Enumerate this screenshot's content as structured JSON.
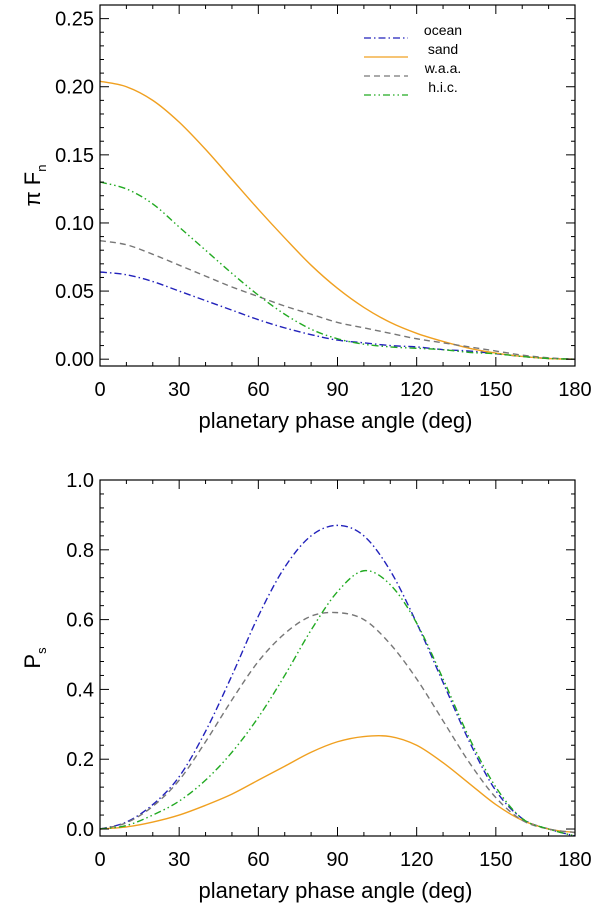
{
  "chart_data": [
    {
      "type": "line",
      "id": "top",
      "xlabel": "planetary phase angle (deg)",
      "ylabel_main": "π F",
      "ylabel_sub": "n",
      "xlim": [
        0,
        180
      ],
      "ylim": [
        -0.005,
        0.26
      ],
      "xticks": [
        0,
        30,
        60,
        90,
        120,
        150,
        180
      ],
      "yticks": [
        0.0,
        0.05,
        0.1,
        0.15,
        0.2,
        0.25
      ],
      "ytick_labels": [
        "0.00",
        "0.05",
        "0.10",
        "0.15",
        "0.20",
        "0.25"
      ],
      "legend": {
        "position": "top-right"
      },
      "series": [
        {
          "name": "ocean",
          "color": "#2222bb",
          "dash": "dashdot",
          "x": [
            0,
            10,
            20,
            30,
            40,
            50,
            60,
            70,
            80,
            90,
            100,
            110,
            120,
            130,
            140,
            150,
            160,
            170,
            180
          ],
          "y": [
            0.064,
            0.062,
            0.057,
            0.05,
            0.043,
            0.036,
            0.029,
            0.023,
            0.018,
            0.014,
            0.012,
            0.01,
            0.009,
            0.007,
            0.006,
            0.004,
            0.002,
            0.0005,
            0.0
          ]
        },
        {
          "name": "sand",
          "color": "#f0a020",
          "dash": "solid",
          "x": [
            0,
            10,
            20,
            30,
            40,
            50,
            60,
            70,
            80,
            90,
            100,
            110,
            120,
            130,
            140,
            150,
            160,
            170,
            180
          ],
          "y": [
            0.204,
            0.2,
            0.19,
            0.174,
            0.154,
            0.132,
            0.11,
            0.089,
            0.069,
            0.052,
            0.038,
            0.027,
            0.019,
            0.013,
            0.008,
            0.0045,
            0.002,
            0.0005,
            0.0
          ]
        },
        {
          "name": "w.a.a.",
          "color": "#777777",
          "dash": "dashed",
          "x": [
            0,
            10,
            20,
            30,
            40,
            50,
            60,
            70,
            80,
            90,
            100,
            110,
            120,
            130,
            140,
            150,
            160,
            170,
            180
          ],
          "y": [
            0.087,
            0.084,
            0.077,
            0.069,
            0.061,
            0.053,
            0.046,
            0.039,
            0.033,
            0.027,
            0.023,
            0.019,
            0.015,
            0.012,
            0.009,
            0.006,
            0.003,
            0.001,
            0.0
          ]
        },
        {
          "name": "h.i.c.",
          "color": "#22aa22",
          "dash": "dashdotdot",
          "x": [
            0,
            10,
            20,
            30,
            40,
            50,
            60,
            70,
            80,
            90,
            100,
            110,
            120,
            130,
            140,
            150,
            160,
            170,
            180
          ],
          "y": [
            0.13,
            0.125,
            0.114,
            0.097,
            0.08,
            0.063,
            0.047,
            0.033,
            0.022,
            0.015,
            0.011,
            0.009,
            0.008,
            0.007,
            0.005,
            0.004,
            0.002,
            0.0005,
            0.0
          ]
        }
      ]
    },
    {
      "type": "line",
      "id": "bottom",
      "xlabel": "planetary phase angle (deg)",
      "ylabel_main": "P",
      "ylabel_sub": "s",
      "xlim": [
        0,
        180
      ],
      "ylim": [
        -0.02,
        1.0
      ],
      "xticks": [
        0,
        30,
        60,
        90,
        120,
        150,
        180
      ],
      "yticks": [
        0.0,
        0.2,
        0.4,
        0.6,
        0.8,
        1.0
      ],
      "ytick_labels": [
        "0.0",
        "0.2",
        "0.4",
        "0.6",
        "0.8",
        "1.0"
      ],
      "series": [
        {
          "name": "ocean",
          "color": "#2222bb",
          "dash": "dashdot",
          "x": [
            0,
            10,
            20,
            30,
            40,
            50,
            60,
            70,
            80,
            90,
            100,
            110,
            120,
            130,
            140,
            150,
            160,
            170,
            180
          ],
          "y": [
            0.0,
            0.02,
            0.07,
            0.15,
            0.28,
            0.44,
            0.61,
            0.75,
            0.84,
            0.87,
            0.84,
            0.74,
            0.59,
            0.42,
            0.25,
            0.11,
            0.03,
            0.0,
            -0.02
          ]
        },
        {
          "name": "sand",
          "color": "#f0a020",
          "dash": "solid",
          "x": [
            0,
            10,
            20,
            30,
            40,
            50,
            60,
            70,
            80,
            90,
            100,
            110,
            120,
            130,
            140,
            150,
            160,
            170,
            180
          ],
          "y": [
            0.0,
            0.006,
            0.02,
            0.04,
            0.068,
            0.1,
            0.14,
            0.18,
            0.22,
            0.25,
            0.265,
            0.265,
            0.24,
            0.19,
            0.13,
            0.07,
            0.025,
            0.0,
            -0.01
          ]
        },
        {
          "name": "w.a.a.",
          "color": "#777777",
          "dash": "dashed",
          "x": [
            0,
            10,
            20,
            30,
            40,
            50,
            60,
            70,
            80,
            90,
            100,
            110,
            120,
            130,
            140,
            150,
            160,
            170,
            180
          ],
          "y": [
            0.0,
            0.018,
            0.065,
            0.14,
            0.25,
            0.37,
            0.48,
            0.56,
            0.61,
            0.62,
            0.6,
            0.53,
            0.43,
            0.31,
            0.19,
            0.09,
            0.025,
            0.0,
            -0.01
          ]
        },
        {
          "name": "h.i.c.",
          "color": "#22aa22",
          "dash": "dashdotdot",
          "x": [
            0,
            10,
            20,
            30,
            40,
            50,
            60,
            70,
            80,
            90,
            100,
            110,
            120,
            130,
            140,
            150,
            160,
            170,
            180
          ],
          "y": [
            0.0,
            0.01,
            0.04,
            0.08,
            0.14,
            0.22,
            0.32,
            0.44,
            0.57,
            0.68,
            0.74,
            0.7,
            0.59,
            0.43,
            0.26,
            0.12,
            0.03,
            0.0,
            -0.02
          ]
        }
      ]
    }
  ]
}
